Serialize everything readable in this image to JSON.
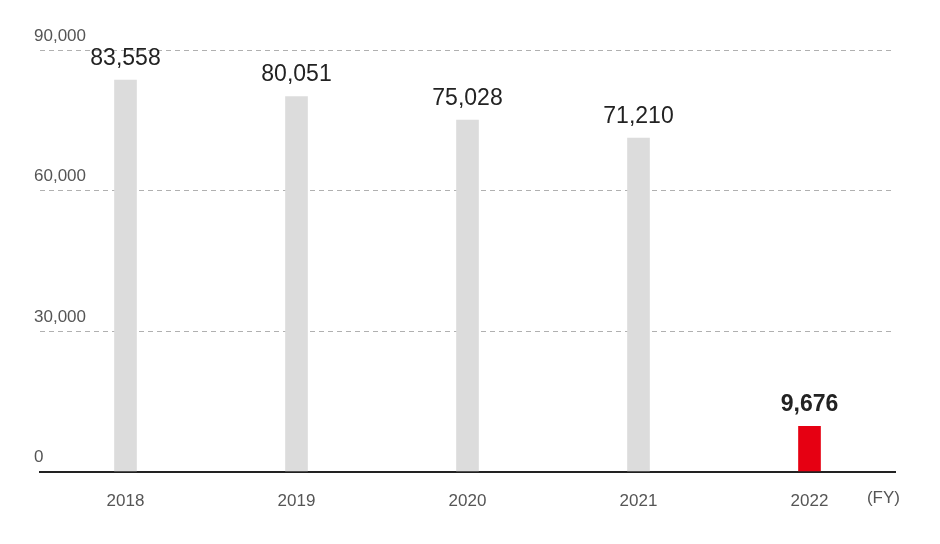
{
  "chart_data": {
    "type": "bar",
    "categories": [
      "2018",
      "2019",
      "2020",
      "2021",
      "2022"
    ],
    "values": [
      83558,
      80051,
      75028,
      71210,
      9676
    ],
    "value_labels": [
      "83,558",
      "80,051",
      "75,028",
      "71,210",
      "9,676"
    ],
    "colors": [
      "#dcdcdc",
      "#dcdcdc",
      "#dcdcdc",
      "#dcdcdc",
      "#e60012"
    ],
    "x_label": "(FY)",
    "ylim": [
      0,
      90000
    ],
    "yticks": [
      0,
      {
        "value": 30000,
        "label": "30,000"
      },
      {
        "value": 60000,
        "label": "60,000"
      },
      {
        "value": 90000,
        "label": "90,000"
      }
    ],
    "grid": true,
    "data_labels": true
  }
}
